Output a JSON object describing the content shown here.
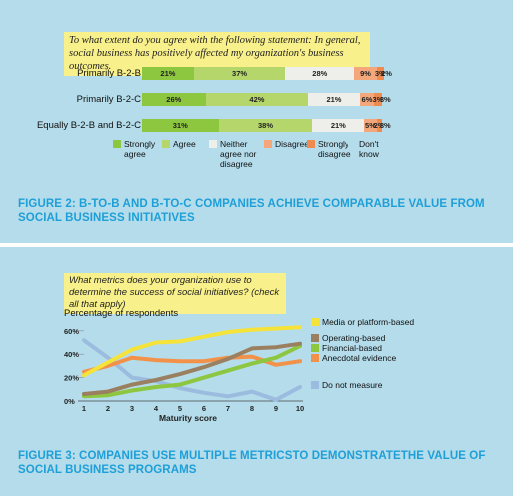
{
  "figure2": {
    "question": "To what extent do you agree with the following statement:  In general, social business has positively affected my organization's business outcomes.",
    "caption": "FIGURE 2: B-TO-B AND B-TO-C COMPANIES ACHIEVE COMPARABLE VALUE FROM SOCIAL BUSINESS INITIATIVES",
    "chart_data": {
      "type": "bar",
      "orientation": "horizontal-stacked",
      "categories": [
        "Primarily B-2-B",
        "Primarily B-2-C",
        "Equally B-2-B and B-2-C"
      ],
      "series": [
        {
          "name": "Strongly agree",
          "color": "#8dc63f",
          "values": [
            21,
            26,
            31
          ],
          "labels": [
            "21%",
            "26%",
            "31%"
          ]
        },
        {
          "name": "Agree",
          "color": "#b5d66b",
          "values": [
            37,
            42,
            38
          ],
          "labels": [
            "37%",
            "42%",
            "38%"
          ]
        },
        {
          "name": "Neither agree nor disagree",
          "color": "#eeeeea",
          "values": [
            28,
            21,
            21
          ],
          "labels": [
            "28%",
            "21%",
            "21%"
          ]
        },
        {
          "name": "Disagree",
          "color": "#f4a77a",
          "values": [
            9,
            6,
            5
          ],
          "labels": [
            "9%",
            "6%",
            "5%"
          ]
        },
        {
          "name": "Strongly disagree",
          "color": "#ef8a50",
          "values": [
            3,
            3,
            2
          ],
          "labels": [
            "3%",
            "3%",
            "2%"
          ]
        },
        {
          "name": "Don't know",
          "color": "#b4dcea",
          "values": [
            2,
            3,
            3
          ],
          "labels": [
            "2%",
            "3%",
            "3%"
          ]
        }
      ],
      "legend": [
        {
          "label": "Strongly agree",
          "color": "#8dc63f"
        },
        {
          "label": "Agree",
          "color": "#b5d66b"
        },
        {
          "label": "Neither agree nor disagree",
          "color": "#eeeeea"
        },
        {
          "label": "Disagree",
          "color": "#f4a77a"
        },
        {
          "label": "Strongly disagree",
          "color": "#ef8a50"
        },
        {
          "label": "Don't know",
          "color": "#b4dcea"
        }
      ]
    }
  },
  "figure3": {
    "question": "What metrics does your organization use to determine the success of social initiatives? (check all that apply)",
    "caption": "FIGURE 3: COMPANIES USE MULTIPLE METRICSTO DEMONSTRATETHE VALUE OF SOCIAL BUSINESS PROGRAMS",
    "chart_data": {
      "type": "line",
      "ylabel": "Percentage of respondents",
      "xlabel": "Maturity score",
      "x": [
        1,
        2,
        3,
        4,
        5,
        6,
        7,
        8,
        9,
        10
      ],
      "ylim": [
        0,
        65
      ],
      "yticks": [
        0,
        20,
        40,
        60
      ],
      "ytick_labels": [
        "0%",
        "20%",
        "40%",
        "60%"
      ],
      "series": [
        {
          "name": "Media or platform-based",
          "color": "#f5e33a",
          "values": [
            22,
            33,
            44,
            50,
            51,
            55,
            59,
            61,
            62,
            63
          ]
        },
        {
          "name": "Operating-based",
          "color": "#9a8060",
          "values": [
            6,
            8,
            14,
            18,
            23,
            29,
            36,
            45,
            46,
            49
          ]
        },
        {
          "name": "Financial-based",
          "color": "#8dc63f",
          "values": [
            4,
            5,
            9,
            12,
            14,
            20,
            26,
            32,
            37,
            47
          ]
        },
        {
          "name": "Anecdotal evidence",
          "color": "#f2924a",
          "values": [
            25,
            30,
            37,
            35,
            34,
            34,
            37,
            38,
            31,
            34
          ]
        },
        {
          "name": "Do not measure",
          "color": "#9cbcdf",
          "values": [
            52,
            37,
            20,
            17,
            11,
            7,
            4,
            8,
            1,
            12
          ]
        }
      ]
    }
  }
}
